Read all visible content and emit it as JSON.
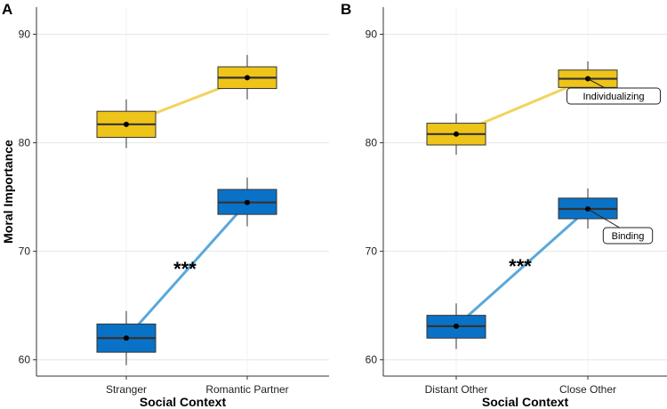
{
  "chart_data": [
    {
      "panel": "A",
      "type": "box",
      "xlabel": "Social Context",
      "ylabel": "Moral Importance",
      "ylim": [
        58.5,
        92.5
      ],
      "yticks": [
        60,
        70,
        80,
        90
      ],
      "grid": true,
      "categories": [
        "Stranger",
        "Romantic Partner"
      ],
      "series": [
        {
          "name": "Individualizing",
          "color": "#EFC419",
          "line_color": "#F2D35C",
          "boxes": [
            {
              "whisker_low": 79.5,
              "q1": 80.5,
              "median": 81.7,
              "q3": 82.9,
              "whisker_high": 84.0,
              "mean": 81.7
            },
            {
              "whisker_low": 84.0,
              "q1": 85.0,
              "median": 86.0,
              "q3": 87.0,
              "whisker_high": 88.1,
              "mean": 86.0
            }
          ]
        },
        {
          "name": "Binding",
          "color": "#0A72C6",
          "line_color": "#5AA8DA",
          "boxes": [
            {
              "whisker_low": 59.5,
              "q1": 60.7,
              "median": 62.0,
              "q3": 63.3,
              "whisker_high": 64.5,
              "mean": 62.0
            },
            {
              "whisker_low": 72.3,
              "q1": 73.4,
              "median": 74.5,
              "q3": 75.7,
              "whisker_high": 76.8,
              "mean": 74.5
            }
          ]
        }
      ],
      "annotation": "***"
    },
    {
      "panel": "B",
      "type": "box",
      "xlabel": "Social Context",
      "ylabel": "",
      "ylim": [
        58.5,
        92.5
      ],
      "yticks": [
        60,
        70,
        80,
        90
      ],
      "grid": true,
      "categories": [
        "Distant Other",
        "Close Other"
      ],
      "series": [
        {
          "name": "Individualizing",
          "color": "#EFC419",
          "line_color": "#F2D35C",
          "boxes": [
            {
              "whisker_low": 78.9,
              "q1": 79.8,
              "median": 80.8,
              "q3": 81.8,
              "whisker_high": 82.7,
              "mean": 80.8
            },
            {
              "whisker_low": 84.3,
              "q1": 85.1,
              "median": 85.9,
              "q3": 86.7,
              "whisker_high": 87.5,
              "mean": 85.9
            }
          ],
          "callout": "Individualizing"
        },
        {
          "name": "Binding",
          "color": "#0A72C6",
          "line_color": "#5AA8DA",
          "boxes": [
            {
              "whisker_low": 61.0,
              "q1": 62.0,
              "median": 63.1,
              "q3": 64.1,
              "whisker_high": 65.2,
              "mean": 63.1
            },
            {
              "whisker_low": 72.1,
              "q1": 73.0,
              "median": 73.9,
              "q3": 74.9,
              "whisker_high": 75.8,
              "mean": 73.9
            }
          ],
          "callout": "Binding"
        }
      ],
      "annotation": "***"
    }
  ]
}
